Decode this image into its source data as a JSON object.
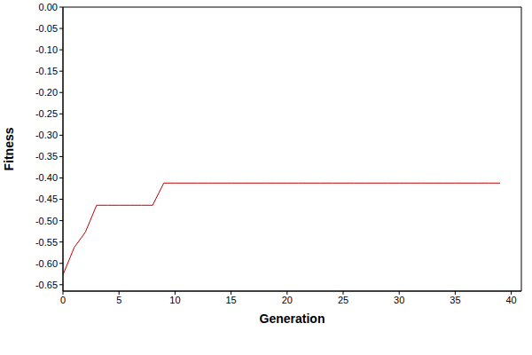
{
  "chart_data": {
    "type": "line",
    "x_label": "Generation",
    "y_label": "Fitness",
    "x": [
      0,
      1,
      2,
      3,
      4,
      5,
      6,
      7,
      8,
      9,
      10,
      11,
      12,
      13,
      14,
      15,
      16,
      17,
      18,
      19,
      20,
      21,
      22,
      23,
      24,
      25,
      26,
      27,
      28,
      29,
      30,
      31,
      32,
      33,
      34,
      35,
      36,
      37,
      38,
      39
    ],
    "values": [
      -0.627,
      -0.563,
      -0.527,
      -0.464,
      -0.464,
      -0.464,
      -0.464,
      -0.464,
      -0.464,
      -0.412,
      -0.412,
      -0.412,
      -0.412,
      -0.412,
      -0.412,
      -0.412,
      -0.412,
      -0.412,
      -0.412,
      -0.412,
      -0.412,
      -0.412,
      -0.412,
      -0.412,
      -0.412,
      -0.412,
      -0.412,
      -0.412,
      -0.412,
      -0.412,
      -0.412,
      -0.412,
      -0.412,
      -0.412,
      -0.412,
      -0.412,
      -0.412,
      -0.412,
      -0.412,
      -0.412
    ],
    "color": "#c00000",
    "xlim": [
      0,
      40.9
    ],
    "ylim": [
      -0.665,
      0
    ],
    "xticks": [
      0,
      5,
      10,
      15,
      20,
      25,
      30,
      35,
      40
    ],
    "yticks": [
      {
        "value": 0,
        "label": "0.00"
      },
      -0.05,
      {
        "value": -0.1,
        "label": "-0.10"
      },
      -0.15,
      {
        "value": -0.2,
        "label": "-0.20"
      },
      -0.25,
      {
        "value": -0.3,
        "label": "-0.30"
      },
      -0.35,
      {
        "value": -0.4,
        "label": "-0.40"
      },
      -0.45,
      {
        "value": -0.5,
        "label": "-0.50"
      },
      -0.55,
      {
        "value": -0.6,
        "label": "-0.60"
      },
      -0.65
    ],
    "grid": false
  }
}
